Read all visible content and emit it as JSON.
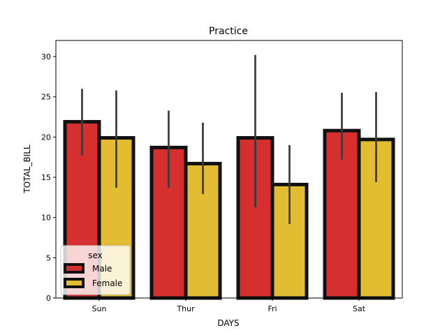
{
  "chart_data": {
    "type": "bar",
    "title": "Practice",
    "xlabel": "DAYS",
    "ylabel": "TOTAL_BILL",
    "categories": [
      "Sun",
      "Thur",
      "Fri",
      "Sat"
    ],
    "ylim": [
      0,
      32
    ],
    "yticks": [
      0,
      5,
      10,
      15,
      20,
      25,
      30
    ],
    "series": [
      {
        "name": "Male",
        "color": "#d62f2f",
        "values": [
          21.9,
          18.7,
          19.9,
          20.8
        ],
        "ci_low": [
          17.7,
          13.7,
          11.3,
          17.2
        ],
        "ci_high": [
          26.0,
          23.3,
          30.2,
          25.5
        ]
      },
      {
        "name": "Female",
        "color": "#e2bd32",
        "values": [
          19.9,
          16.7,
          14.1,
          19.7
        ],
        "ci_low": [
          13.7,
          12.9,
          9.2,
          14.4
        ],
        "ci_high": [
          25.8,
          21.8,
          19.0,
          25.6
        ]
      }
    ],
    "bar_edge_color": "#111111",
    "errorbar_color": "#3a3a3a",
    "legend": {
      "title": "sex",
      "position": "lower-left"
    }
  }
}
